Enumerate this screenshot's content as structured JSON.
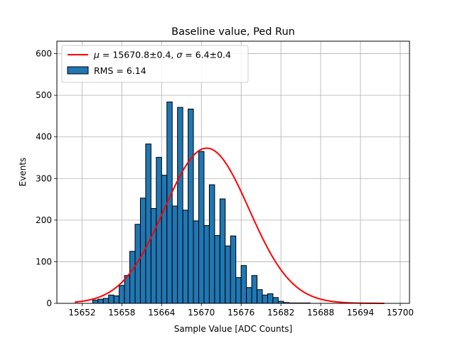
{
  "chart_data": {
    "type": "bar",
    "title": "Baseline value, Ped Run",
    "xlabel": "Sample Value [ADC Counts]",
    "ylabel": "Events",
    "xlim": [
      15648.2,
      15701.4
    ],
    "ylim": [
      0,
      630
    ],
    "xticks": [
      15652,
      15658,
      15664,
      15670,
      15676,
      15682,
      15688,
      15694,
      15700
    ],
    "yticks": [
      0,
      100,
      200,
      300,
      400,
      500,
      600
    ],
    "grid": true,
    "legend_position": "top-left",
    "bin_width": 0.8,
    "histogram": {
      "name": "RMS = 6.14",
      "color": "#1f77b4",
      "bin_left_edges": [
        15653.6,
        15654.4,
        15655.2,
        15656.0,
        15656.8,
        15657.6,
        15658.4,
        15659.2,
        15660.0,
        15660.8,
        15661.6,
        15662.4,
        15663.2,
        15664.0,
        15664.8,
        15665.6,
        15666.4,
        15667.2,
        15668.0,
        15668.8,
        15669.6,
        15670.4,
        15671.2,
        15672.0,
        15672.8,
        15673.6,
        15674.4,
        15675.2,
        15676.0,
        15676.8,
        15677.6,
        15678.4,
        15679.2,
        15680.0,
        15680.8,
        15681.6,
        15682.4,
        15683.2,
        15684.0,
        15684.8,
        15685.6,
        15686.4,
        15687.2
      ],
      "counts": [
        8,
        10,
        12,
        20,
        18,
        43,
        67,
        125,
        190,
        253,
        383,
        228,
        351,
        308,
        484,
        234,
        471,
        224,
        467,
        198,
        365,
        187,
        285,
        163,
        251,
        138,
        162,
        62,
        91,
        38,
        67,
        33,
        20,
        23,
        14,
        5,
        2,
        1,
        1,
        1,
        1,
        0,
        0
      ]
    },
    "fit": {
      "name": "$\\mu = 15670.8\\pm0.4$, $\\sigma = 6.4\\pm0.4$",
      "legend_label_prefix_mu": "μ",
      "legend_label_mu": " = 15670.8±0.4, ",
      "legend_label_prefix_sigma": "σ",
      "legend_label_sigma": " = 6.4±0.4",
      "color": "#ff0000",
      "mu": 15670.8,
      "sigma": 6.4,
      "amplitude": 373,
      "x_range": [
        15650.9,
        15697.6
      ]
    }
  }
}
